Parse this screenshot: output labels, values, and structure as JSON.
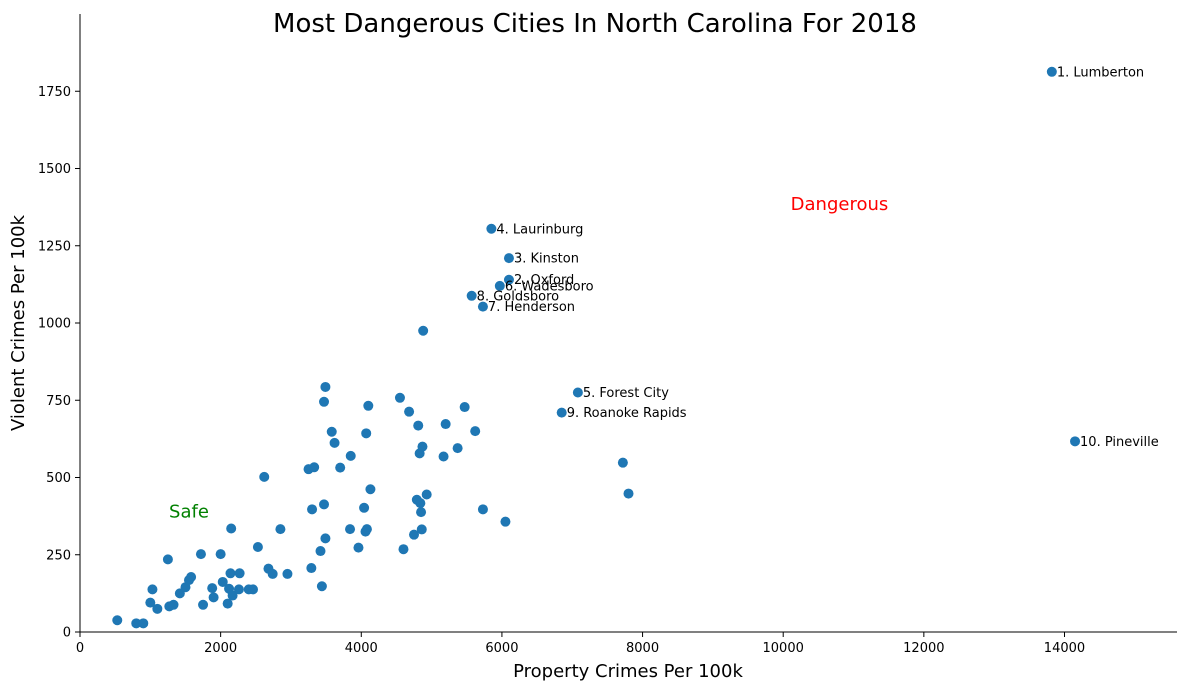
{
  "chart_data": {
    "type": "scatter",
    "title": "Most Dangerous Cities In North Carolina For 2018",
    "xlabel": "Property Crimes Per 100k",
    "ylabel": "Violent Crimes Per 100k",
    "xlim": [
      0,
      15600
    ],
    "ylim": [
      0,
      2000
    ],
    "xticks": [
      0,
      2000,
      4000,
      6000,
      8000,
      10000,
      12000,
      14000
    ],
    "yticks": [
      0,
      250,
      500,
      750,
      1000,
      1250,
      1500,
      1750
    ],
    "grid": false,
    "point_color": "#1f77b4",
    "zones": [
      {
        "text": "Dangerous",
        "color": "#ff0000",
        "x": 10800,
        "y": 1385
      },
      {
        "text": "Safe",
        "color": "#008000",
        "x": 1550,
        "y": 390
      }
    ],
    "labeled_points": [
      {
        "label": "1. Lumberton",
        "x": 13820,
        "y": 1813
      },
      {
        "label": "2. Oxford",
        "x": 6100,
        "y": 1140
      },
      {
        "label": "3. Kinston",
        "x": 6100,
        "y": 1210
      },
      {
        "label": "4. Laurinburg",
        "x": 5850,
        "y": 1305
      },
      {
        "label": "5. Forest City",
        "x": 7080,
        "y": 775
      },
      {
        "label": "6. Wadesboro",
        "x": 5970,
        "y": 1120
      },
      {
        "label": "7. Henderson",
        "x": 5730,
        "y": 1053
      },
      {
        "label": "8. Goldsboro",
        "x": 5570,
        "y": 1088
      },
      {
        "label": "9. Roanoke Rapids",
        "x": 6850,
        "y": 710
      },
      {
        "label": "10. Pineville",
        "x": 14150,
        "y": 617
      }
    ],
    "points": [
      [
        530,
        38
      ],
      [
        800,
        28
      ],
      [
        900,
        28
      ],
      [
        1000,
        95
      ],
      [
        1030,
        138
      ],
      [
        1100,
        75
      ],
      [
        1250,
        235
      ],
      [
        1270,
        83
      ],
      [
        1330,
        88
      ],
      [
        1420,
        125
      ],
      [
        1500,
        145
      ],
      [
        1550,
        168
      ],
      [
        1580,
        178
      ],
      [
        1720,
        252
      ],
      [
        1750,
        88
      ],
      [
        1880,
        142
      ],
      [
        1900,
        112
      ],
      [
        2000,
        252
      ],
      [
        2030,
        162
      ],
      [
        2100,
        92
      ],
      [
        2120,
        140
      ],
      [
        2140,
        190
      ],
      [
        2150,
        335
      ],
      [
        2170,
        118
      ],
      [
        2260,
        138
      ],
      [
        2270,
        190
      ],
      [
        2400,
        138
      ],
      [
        2460,
        138
      ],
      [
        2530,
        275
      ],
      [
        2620,
        502
      ],
      [
        2680,
        205
      ],
      [
        2740,
        188
      ],
      [
        2850,
        333
      ],
      [
        2950,
        188
      ],
      [
        3250,
        527
      ],
      [
        3290,
        207
      ],
      [
        3300,
        397
      ],
      [
        3330,
        533
      ],
      [
        3420,
        262
      ],
      [
        3440,
        148
      ],
      [
        3470,
        413
      ],
      [
        3470,
        745
      ],
      [
        3490,
        303
      ],
      [
        3490,
        793
      ],
      [
        3580,
        648
      ],
      [
        3620,
        612
      ],
      [
        3700,
        532
      ],
      [
        3840,
        333
      ],
      [
        3850,
        570
      ],
      [
        3960,
        273
      ],
      [
        4040,
        402
      ],
      [
        4060,
        325
      ],
      [
        4070,
        643
      ],
      [
        4080,
        333
      ],
      [
        4100,
        732
      ],
      [
        4130,
        462
      ],
      [
        4550,
        758
      ],
      [
        4600,
        268
      ],
      [
        4680,
        713
      ],
      [
        4750,
        315
      ],
      [
        4790,
        428
      ],
      [
        4810,
        668
      ],
      [
        4830,
        578
      ],
      [
        4840,
        417
      ],
      [
        4850,
        388
      ],
      [
        4860,
        332
      ],
      [
        4870,
        600
      ],
      [
        4880,
        975
      ],
      [
        4930,
        445
      ],
      [
        5170,
        568
      ],
      [
        5200,
        673
      ],
      [
        5370,
        595
      ],
      [
        5470,
        728
      ],
      [
        5620,
        650
      ],
      [
        5730,
        397
      ],
      [
        6050,
        357
      ],
      [
        7720,
        548
      ],
      [
        7800,
        448
      ]
    ]
  }
}
